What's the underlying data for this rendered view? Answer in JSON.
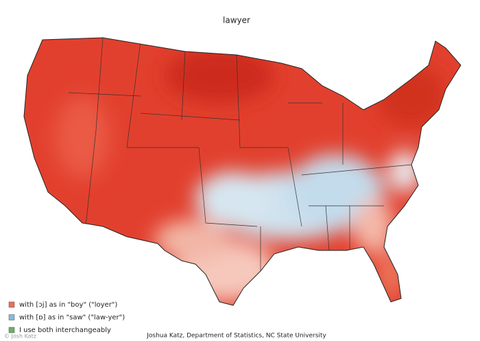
{
  "title": "lawyer",
  "legend": [
    {
      "label": "with [ɔj] as in \"boy\" (\"loyer\")",
      "color": "#e8705a"
    },
    {
      "label": "with [ɒ] as in \"saw\" (\"law-yer\")",
      "color": "#8ab8d8"
    },
    {
      "label": "I use both interchangeably",
      "color": "#6ab06a"
    }
  ],
  "credit": "Joshua Katz, Department of Statistics, NC State University",
  "watermark": "© Josh Katz"
}
